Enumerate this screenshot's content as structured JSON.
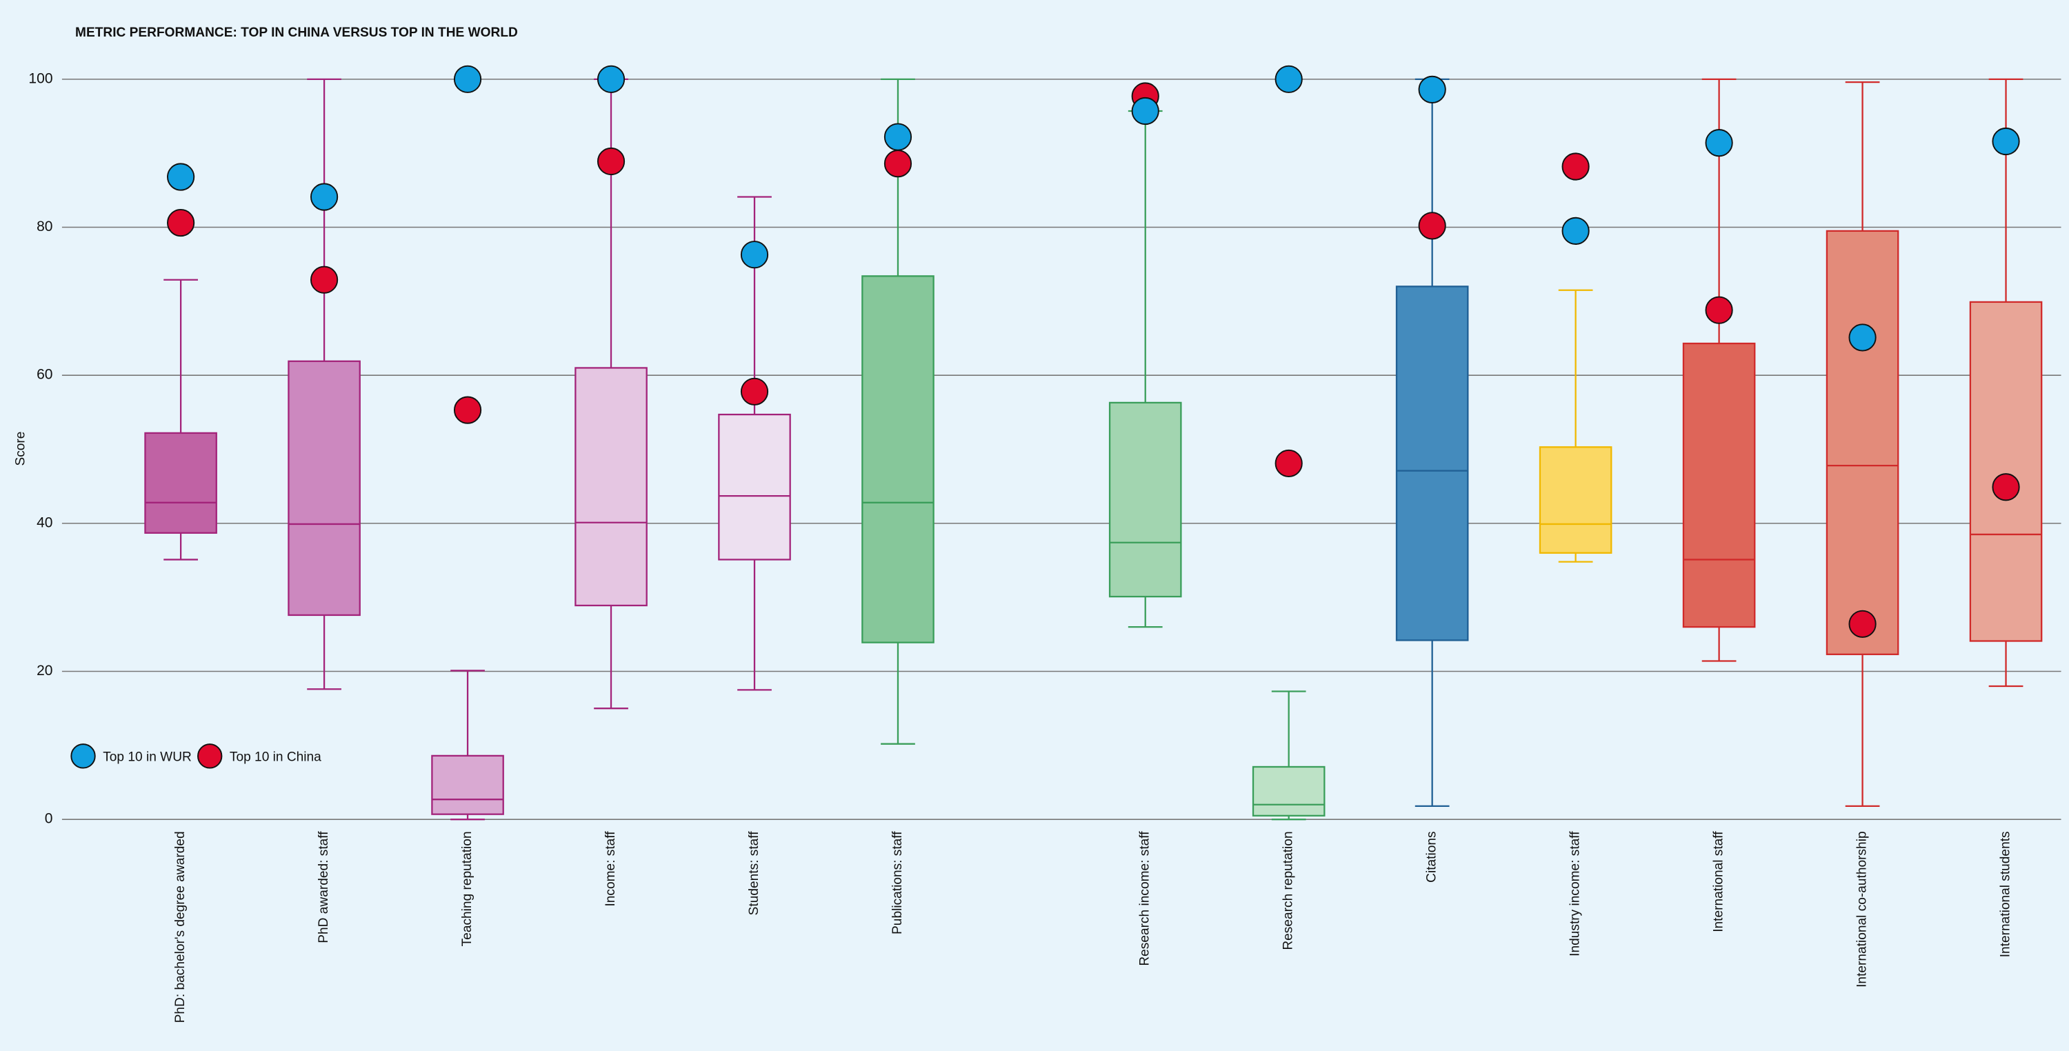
{
  "chart_data": {
    "type": "box",
    "title": "METRIC PERFORMANCE: TOP IN CHINA VERSUS TOP IN THE WORLD",
    "y_label": "Score",
    "ylim": [
      0,
      100
    ],
    "yticks": [
      0,
      20,
      40,
      60,
      80,
      100
    ],
    "grid": true,
    "legend": "lower left",
    "categories": [
      "PhD: bachelor's degree awarded",
      "PhD awarded: staff",
      "Teaching reputation",
      "Income: staff",
      "Students: staff",
      "Publications: staff",
      "Research income: staff",
      "Research reputation",
      "Citations",
      "Industry income: staff",
      "International staff",
      "International co-authorship",
      "International students"
    ],
    "boxes": [
      {
        "low": 35.1,
        "q1": 38.7,
        "median": 42.8,
        "q3": 52.2,
        "high": 72.9,
        "fill": "#c062a4",
        "stroke": "#a3237a"
      },
      {
        "low": 17.6,
        "q1": 27.6,
        "median": 39.9,
        "q3": 61.9,
        "high": 100,
        "fill": "#cc88bf",
        "stroke": "#a3237a"
      },
      {
        "low": 0,
        "q1": 0.7,
        "median": 2.7,
        "q3": 8.6,
        "high": 20.1,
        "fill": "#d9a9d2",
        "stroke": "#a3237a"
      },
      {
        "low": 15.0,
        "q1": 28.9,
        "median": 40.1,
        "q3": 61.0,
        "high": 100,
        "fill": "#e5c6e2",
        "stroke": "#a3237a"
      },
      {
        "low": 17.5,
        "q1": 35.1,
        "median": 43.7,
        "q3": 54.7,
        "high": 84.1,
        "fill": "#ede0f0",
        "stroke": "#a3237a"
      },
      {
        "low": 10.2,
        "q1": 23.9,
        "median": 42.8,
        "q3": 73.4,
        "high": 100,
        "fill": "#86c79a",
        "stroke": "#3a9e5a"
      },
      {
        "low": 26.0,
        "q1": 30.1,
        "median": 37.4,
        "q3": 56.3,
        "high": 95.7,
        "fill": "#a2d5b0",
        "stroke": "#3a9e5a"
      },
      {
        "low": 0,
        "q1": 0.5,
        "median": 2.0,
        "q3": 7.1,
        "high": 17.3,
        "fill": "#bde2c6",
        "stroke": "#3a9e5a"
      },
      {
        "low": 1.8,
        "q1": 24.2,
        "median": 47.1,
        "q3": 72.0,
        "high": 100,
        "fill": "#448bbd",
        "stroke": "#1f5f94"
      },
      {
        "low": 34.8,
        "q1": 36.0,
        "median": 39.9,
        "q3": 50.3,
        "high": 71.5,
        "fill": "#fad864",
        "stroke": "#f0b800"
      },
      {
        "low": 21.4,
        "q1": 26.0,
        "median": 35.1,
        "q3": 64.3,
        "high": 100,
        "fill": "#de6559",
        "stroke": "#d02a2a"
      },
      {
        "low": 1.8,
        "q1": 22.3,
        "median": 47.8,
        "q3": 79.5,
        "high": 99.6,
        "fill": "#e38b7a",
        "stroke": "#d02a2a"
      },
      {
        "low": 18.0,
        "q1": 24.1,
        "median": 38.5,
        "q3": 69.9,
        "high": 100,
        "fill": "#e8a597",
        "stroke": "#d02a2a"
      }
    ],
    "series": [
      {
        "name": "Top 10 in China",
        "color": "#e0082d",
        "values": [
          80.6,
          72.9,
          55.3,
          88.9,
          57.8,
          88.6,
          97.7,
          48.1,
          80.2,
          88.2,
          68.8,
          26.4,
          44.9
        ]
      },
      {
        "name": "Top 10 in WUR",
        "color": "#119fe0",
        "values": [
          86.8,
          84.1,
          100,
          100,
          76.3,
          92.2,
          95.7,
          100,
          98.6,
          79.5,
          91.4,
          65.1,
          91.6
        ]
      }
    ]
  }
}
